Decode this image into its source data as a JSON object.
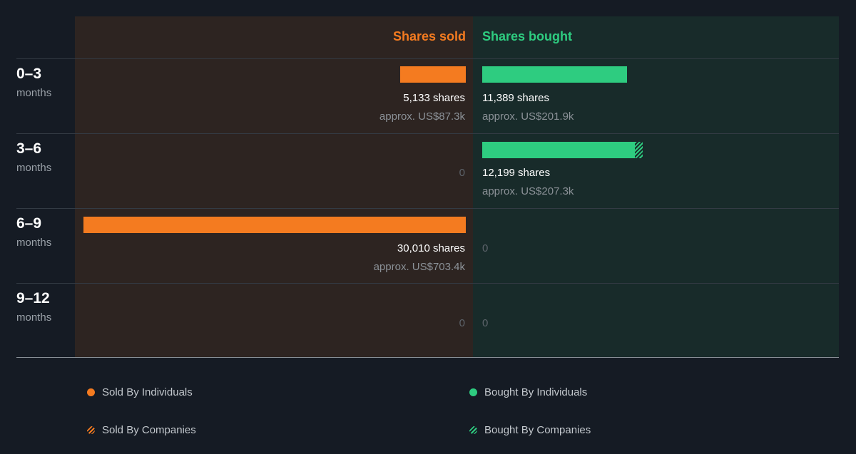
{
  "chart_data": {
    "type": "bar",
    "headers": {
      "sold": "Shares sold",
      "bought": "Shares bought"
    },
    "categories": [
      {
        "range": "0–3",
        "unit": "months"
      },
      {
        "range": "3–6",
        "unit": "months"
      },
      {
        "range": "6–9",
        "unit": "months"
      },
      {
        "range": "9–12",
        "unit": "months"
      }
    ],
    "sold": [
      {
        "shares": 5133,
        "shares_text": "5,133 shares",
        "approx_text": "approx. US$87.3k",
        "zero_text": ""
      },
      {
        "shares": 0,
        "shares_text": "",
        "approx_text": "",
        "zero_text": "0"
      },
      {
        "shares": 30010,
        "shares_text": "30,010 shares",
        "approx_text": "approx. US$703.4k",
        "zero_text": ""
      },
      {
        "shares": 0,
        "shares_text": "",
        "approx_text": "",
        "zero_text": "0"
      }
    ],
    "bought": [
      {
        "shares": 11389,
        "company_shares": 0,
        "shares_text": "11,389 shares",
        "approx_text": "approx. US$201.9k",
        "zero_text": ""
      },
      {
        "shares": 11989,
        "company_shares": 210,
        "shares_text": "12,199 shares",
        "approx_text": "approx. US$207.3k",
        "zero_text": ""
      },
      {
        "shares": 0,
        "company_shares": 0,
        "shares_text": "",
        "approx_text": "",
        "zero_text": "0"
      },
      {
        "shares": 0,
        "company_shares": 0,
        "shares_text": "",
        "approx_text": "",
        "zero_text": "0"
      }
    ],
    "max_shares": 30010,
    "legend": [
      {
        "label": "Sold By Individuals",
        "style": "solid",
        "color": "#f47b20"
      },
      {
        "label": "Bought By Individuals",
        "style": "solid",
        "color": "#2ecc80"
      },
      {
        "label": "Sold By Companies",
        "style": "hatch",
        "color": "#f47b20"
      },
      {
        "label": "Bought By Companies",
        "style": "hatch",
        "color": "#2ecc80"
      }
    ],
    "colors": {
      "sold": "#f47b20",
      "bought": "#2ecc80"
    }
  }
}
